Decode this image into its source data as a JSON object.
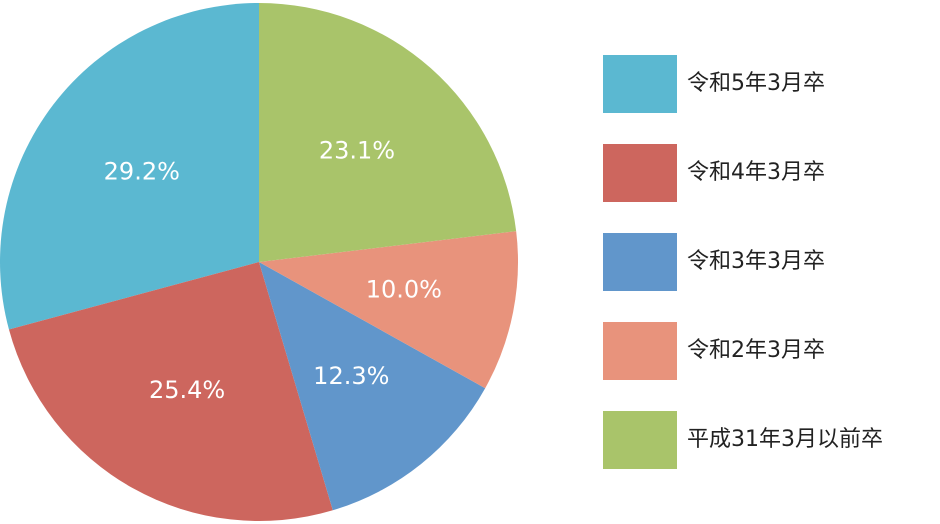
{
  "chart_data": {
    "type": "pie",
    "categories": [
      "令和5年3月卒",
      "令和4年3月卒",
      "令和3年3月卒",
      "令和2年3月卒",
      "平成31年3月以前卒"
    ],
    "values": [
      29.2,
      25.4,
      12.3,
      10.0,
      23.1
    ],
    "value_labels": [
      "29.2%",
      "25.4%",
      "12.3%",
      "10.0%",
      "23.1%"
    ],
    "colors": [
      "#5bb8d1",
      "#cd665e",
      "#6196cb",
      "#e8937c",
      "#a9c46a"
    ],
    "legend": "right"
  }
}
